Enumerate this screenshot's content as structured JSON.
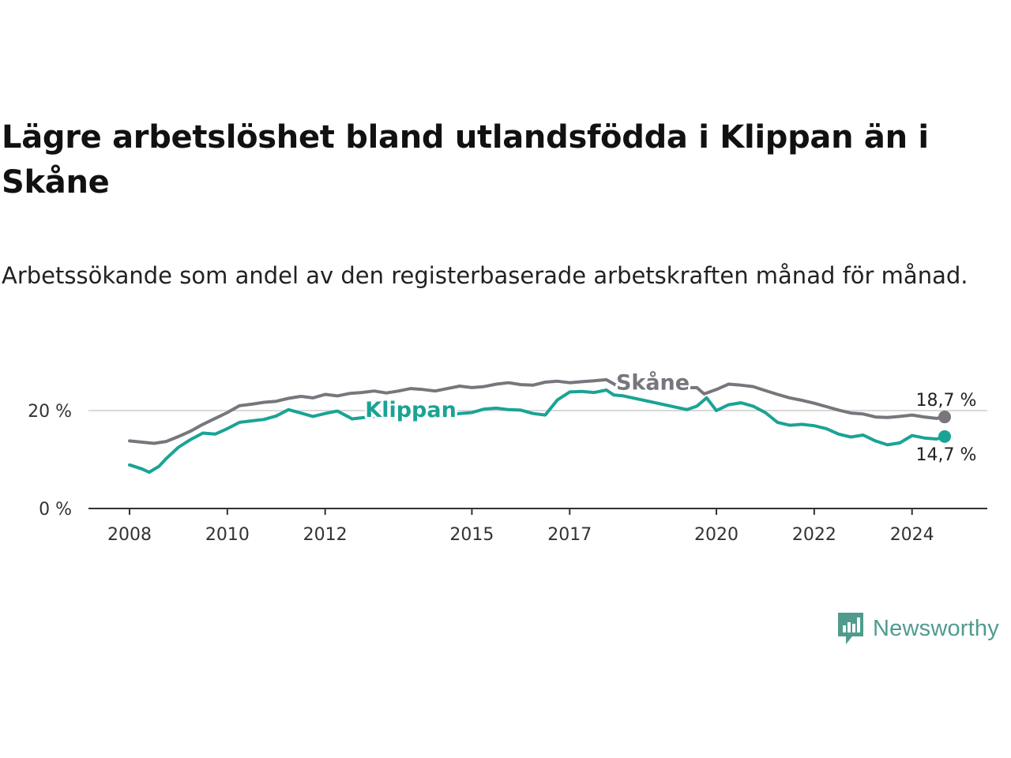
{
  "title": "Lägre arbetslöshet bland utlandsfödda i Klippan än i Skåne",
  "subtitle": "Arbetssökande som andel av den registerbaserade arbetskraften månad för månad.",
  "branding": {
    "name": "Newsworthy",
    "color": "#4f9c8e"
  },
  "chart_data": {
    "type": "line",
    "title": "Lägre arbetslöshet bland utlandsfödda i Klippan än i Skåne",
    "xlabel": "",
    "ylabel": "",
    "xlim": [
      2008,
      2024.667
    ],
    "ylim": [
      0,
      25
    ],
    "grid": "horizontal",
    "x_ticks": [
      {
        "value": 2008,
        "label": "2008"
      },
      {
        "value": 2010,
        "label": "2010"
      },
      {
        "value": 2012,
        "label": "2012"
      },
      {
        "value": 2015,
        "label": "2015"
      },
      {
        "value": 2017,
        "label": "2017"
      },
      {
        "value": 2020,
        "label": "2020"
      },
      {
        "value": 2022,
        "label": "2022"
      },
      {
        "value": 2024,
        "label": "2024"
      }
    ],
    "y_ticks": [
      {
        "value": 0,
        "label": "0 %"
      },
      {
        "value": 20,
        "label": "20 %"
      }
    ],
    "series": [
      {
        "name": "Skåne",
        "color": "#77767c",
        "end_label": "18,7 %",
        "inline_label": {
          "text": "Skåne",
          "x": 2018.7,
          "y": 24.3
        },
        "points": [
          [
            2008.0,
            13.8
          ],
          [
            2008.5,
            13.3
          ],
          [
            2008.75,
            13.7
          ],
          [
            2009.0,
            14.7
          ],
          [
            2009.25,
            15.8
          ],
          [
            2009.5,
            17.2
          ],
          [
            2009.75,
            18.4
          ],
          [
            2010.0,
            19.6
          ],
          [
            2010.25,
            21.0
          ],
          [
            2010.5,
            21.3
          ],
          [
            2010.75,
            21.7
          ],
          [
            2011.0,
            21.9
          ],
          [
            2011.25,
            22.5
          ],
          [
            2011.5,
            22.9
          ],
          [
            2011.75,
            22.6
          ],
          [
            2012.0,
            23.3
          ],
          [
            2012.25,
            23.0
          ],
          [
            2012.5,
            23.5
          ],
          [
            2012.75,
            23.7
          ],
          [
            2013.0,
            24.0
          ],
          [
            2013.25,
            23.6
          ],
          [
            2013.5,
            24.0
          ],
          [
            2013.75,
            24.5
          ],
          [
            2014.0,
            24.3
          ],
          [
            2014.25,
            24.0
          ],
          [
            2014.5,
            24.5
          ],
          [
            2014.75,
            25.0
          ],
          [
            2015.0,
            24.7
          ],
          [
            2015.25,
            24.9
          ],
          [
            2015.5,
            25.4
          ],
          [
            2015.75,
            25.7
          ],
          [
            2016.0,
            25.3
          ],
          [
            2016.25,
            25.2
          ],
          [
            2016.5,
            25.8
          ],
          [
            2016.75,
            26.0
          ],
          [
            2017.0,
            25.7
          ],
          [
            2017.25,
            25.9
          ],
          [
            2017.5,
            26.1
          ],
          [
            2017.75,
            26.3
          ],
          [
            2018.0,
            24.9
          ],
          [
            2018.1,
            24.5
          ],
          [
            2019.6,
            24.7
          ],
          [
            2019.75,
            23.4
          ],
          [
            2020.0,
            24.3
          ],
          [
            2020.25,
            25.4
          ],
          [
            2020.5,
            25.2
          ],
          [
            2020.75,
            24.9
          ],
          [
            2021.0,
            24.1
          ],
          [
            2021.25,
            23.3
          ],
          [
            2021.5,
            22.6
          ],
          [
            2021.75,
            22.1
          ],
          [
            2022.0,
            21.5
          ],
          [
            2022.25,
            20.8
          ],
          [
            2022.5,
            20.1
          ],
          [
            2022.75,
            19.5
          ],
          [
            2023.0,
            19.3
          ],
          [
            2023.25,
            18.7
          ],
          [
            2023.5,
            18.6
          ],
          [
            2023.75,
            18.8
          ],
          [
            2024.0,
            19.1
          ],
          [
            2024.25,
            18.7
          ],
          [
            2024.5,
            18.4
          ],
          [
            2024.667,
            18.7
          ]
        ]
      },
      {
        "name": "Klippan",
        "color": "#1aa395",
        "end_label": "14,7 %",
        "inline_label": {
          "text": "Klippan",
          "x": 2013.75,
          "y": 18.7
        },
        "points": [
          [
            2008.0,
            8.9
          ],
          [
            2008.25,
            8.1
          ],
          [
            2008.4,
            7.4
          ],
          [
            2008.6,
            8.6
          ],
          [
            2008.75,
            10.2
          ],
          [
            2009.0,
            12.5
          ],
          [
            2009.25,
            14.1
          ],
          [
            2009.5,
            15.4
          ],
          [
            2009.75,
            15.2
          ],
          [
            2010.0,
            16.3
          ],
          [
            2010.25,
            17.6
          ],
          [
            2010.5,
            17.9
          ],
          [
            2010.75,
            18.2
          ],
          [
            2011.0,
            18.9
          ],
          [
            2011.25,
            20.2
          ],
          [
            2011.5,
            19.5
          ],
          [
            2011.75,
            18.8
          ],
          [
            2012.0,
            19.4
          ],
          [
            2012.25,
            19.9
          ],
          [
            2012.5,
            18.6
          ],
          [
            2012.55,
            18.3
          ],
          [
            2013.25,
            19.1
          ],
          [
            2013.4,
            18.7
          ],
          [
            2014.35,
            19.1
          ],
          [
            2014.5,
            19.1
          ],
          [
            2014.75,
            19.4
          ],
          [
            2015.0,
            19.6
          ],
          [
            2015.25,
            20.3
          ],
          [
            2015.5,
            20.5
          ],
          [
            2015.75,
            20.2
          ],
          [
            2016.0,
            20.1
          ],
          [
            2016.25,
            19.4
          ],
          [
            2016.5,
            19.1
          ],
          [
            2016.75,
            22.2
          ],
          [
            2017.0,
            23.8
          ],
          [
            2017.25,
            23.9
          ],
          [
            2017.5,
            23.7
          ],
          [
            2017.75,
            24.2
          ],
          [
            2017.9,
            23.2
          ],
          [
            2018.1,
            23.0
          ],
          [
            2019.4,
            20.2
          ],
          [
            2019.6,
            20.9
          ],
          [
            2019.8,
            22.6
          ],
          [
            2020.0,
            20.0
          ],
          [
            2020.25,
            21.2
          ],
          [
            2020.5,
            21.6
          ],
          [
            2020.75,
            20.9
          ],
          [
            2021.0,
            19.6
          ],
          [
            2021.25,
            17.6
          ],
          [
            2021.5,
            17.0
          ],
          [
            2021.75,
            17.2
          ],
          [
            2022.0,
            16.9
          ],
          [
            2022.25,
            16.3
          ],
          [
            2022.5,
            15.2
          ],
          [
            2022.75,
            14.6
          ],
          [
            2023.0,
            15.0
          ],
          [
            2023.25,
            13.8
          ],
          [
            2023.5,
            13.0
          ],
          [
            2023.75,
            13.4
          ],
          [
            2024.0,
            14.9
          ],
          [
            2024.25,
            14.4
          ],
          [
            2024.5,
            14.2
          ],
          [
            2024.667,
            14.7
          ]
        ]
      }
    ]
  }
}
